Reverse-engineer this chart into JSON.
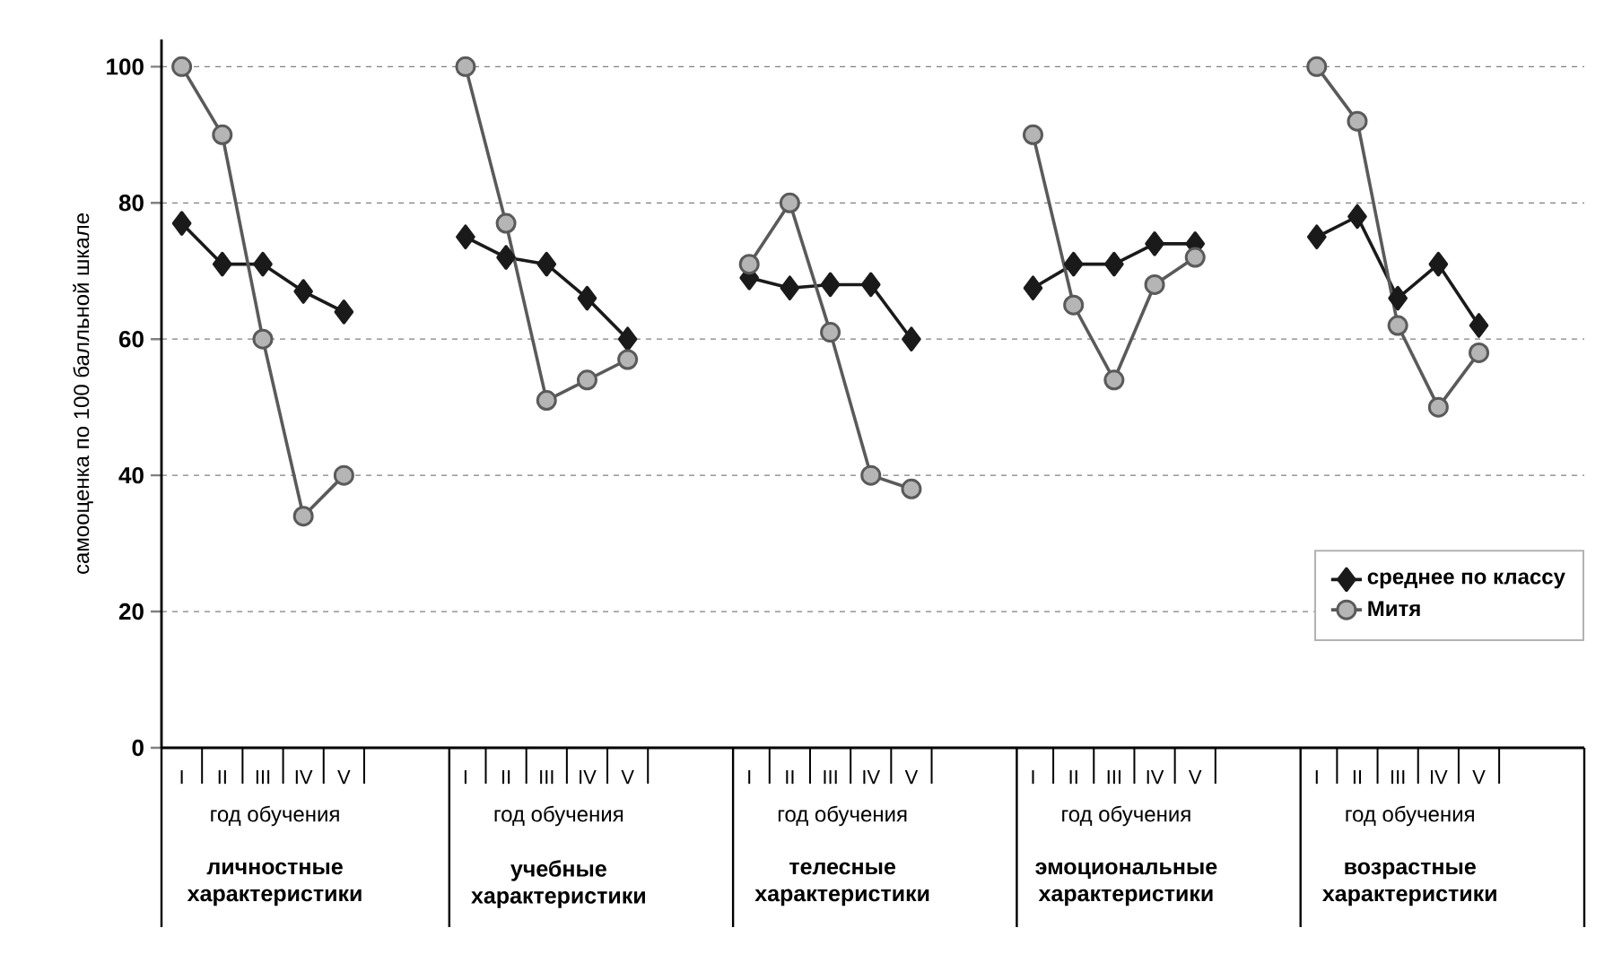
{
  "chart_data": {
    "type": "line",
    "ylabel": "самооценка по 100 балльной шкале",
    "categories": [
      "I",
      "II",
      "III",
      "IV",
      "V",
      null,
      null,
      "I",
      "II",
      "III",
      "IV",
      "V",
      null,
      null,
      "I",
      "II",
      "III",
      "IV",
      "V",
      null,
      null,
      "I",
      "II",
      "III",
      "IV",
      "V",
      null,
      null,
      "I",
      "II",
      "III",
      "IV",
      "V"
    ],
    "series": [
      {
        "name": "среднее по классу",
        "color": "#1a1a1a",
        "marker": "diamond",
        "values": [
          77,
          71,
          71,
          67,
          64,
          null,
          null,
          75,
          72,
          71,
          66,
          60,
          null,
          null,
          69,
          67.5,
          68,
          68,
          60,
          null,
          null,
          67.5,
          71,
          71,
          74,
          74,
          null,
          null,
          75,
          78,
          66,
          71,
          62
        ]
      },
      {
        "name": "Митя",
        "color": "#5a5a5a",
        "marker": "circle",
        "values": [
          100,
          90,
          60,
          34,
          40,
          null,
          null,
          100,
          77,
          51,
          54,
          57,
          null,
          null,
          71,
          80,
          61,
          40,
          38,
          null,
          null,
          90,
          65,
          54,
          68,
          72,
          null,
          null,
          100,
          92,
          62,
          50,
          58
        ]
      }
    ],
    "ylim": [
      0,
      104
    ],
    "yticks": [
      0,
      20,
      40,
      60,
      80,
      100
    ],
    "grid": "y",
    "legend": "right",
    "line_style": "solid",
    "annotations": [
      "год обучения",
      "год обучения",
      "год обучения",
      "год обучения",
      "год обучения",
      "личностные характеристики",
      "учебные характеристики",
      "телесные характеристики",
      "эмоциональные характеристики",
      "возрастные характеристики"
    ]
  }
}
